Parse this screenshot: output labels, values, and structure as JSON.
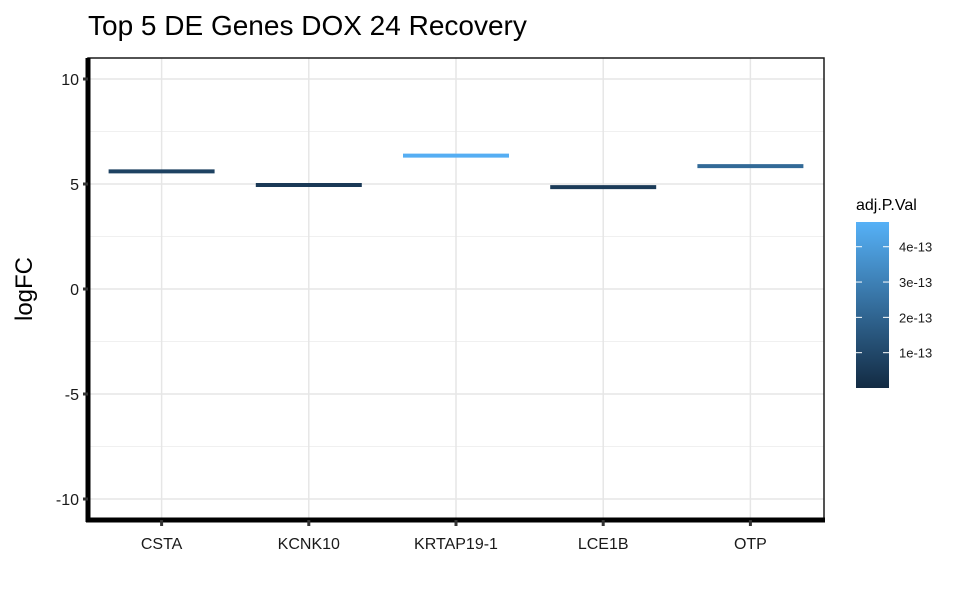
{
  "chart_data": {
    "type": "bar",
    "title": "Top 5 DE Genes DOX 24 Recovery",
    "xlabel": "",
    "ylabel": "logFC",
    "categories": [
      "CSTA",
      "KCNK10",
      "KRTAP19-1",
      "LCE1B",
      "OTP"
    ],
    "values": [
      5.6,
      4.95,
      6.35,
      4.85,
      5.85
    ],
    "color_values": [
      8e-14,
      5e-14,
      4.6e-13,
      5.5e-14,
      2.2e-13
    ],
    "ylim": [
      -11,
      11
    ],
    "yticks": [
      -10,
      -5,
      0,
      5,
      10
    ],
    "ytick_labels": [
      "-10",
      "-5",
      "0",
      "5",
      "10"
    ],
    "grid": true,
    "legend": {
      "title": "adj.P.Val",
      "position": "right",
      "ticks": [
        1e-13,
        2e-13,
        3e-13,
        4e-13
      ],
      "tick_labels": [
        "1e-13",
        "2e-13",
        "3e-13",
        "4e-13"
      ],
      "range": [
        0.0,
        4.7e-13
      ],
      "color_low": "#132b43",
      "color_high": "#56b1f7"
    }
  }
}
